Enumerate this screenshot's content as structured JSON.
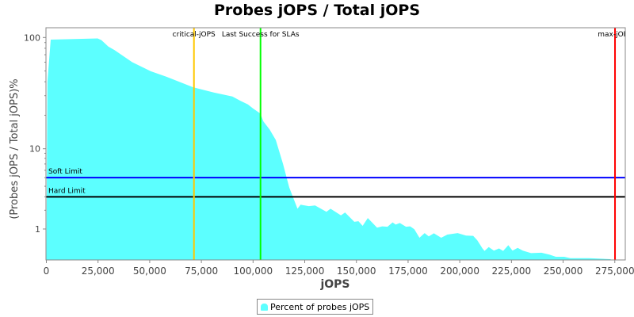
{
  "chart_data": {
    "type": "area",
    "title": "Probes jOPS / Total jOPS",
    "xlabel": "jOPS",
    "ylabel": "(Probes jOPS / Total jOPS)%",
    "xlim": [
      0,
      280000
    ],
    "ylim": [
      0,
      122
    ],
    "y_scale": "log",
    "x_ticks": [
      "0",
      "25,000",
      "50,000",
      "75,000",
      "100,000",
      "125,000",
      "150,000",
      "175,000",
      "200,000",
      "225,000",
      "250,000",
      "275,000"
    ],
    "x_tick_values": [
      0,
      25000,
      50000,
      75000,
      100000,
      125000,
      150000,
      175000,
      200000,
      225000,
      250000,
      275000
    ],
    "y_ticks": [
      "1",
      "10",
      "100"
    ],
    "y_tick_values": [
      1,
      10,
      100
    ],
    "grid": false,
    "legend_position": "bottom",
    "series": [
      {
        "name": "Percent of probes jOPS",
        "color": "#5cffff",
        "x": [
          0,
          500,
          2100,
          24800,
          26700,
          30000,
          33000,
          41500,
          50500,
          58000,
          71000,
          81000,
          90000,
          94000,
          97500,
          100000,
          103500,
          105000,
          108000,
          111000,
          114500,
          117500,
          121500,
          123000,
          127000,
          130000,
          135500,
          137500,
          142500,
          144500,
          149000,
          151000,
          153000,
          155500,
          160000,
          162500,
          165000,
          167500,
          169000,
          171000,
          174000,
          176000,
          178000,
          180500,
          183000,
          185000,
          187500,
          191000,
          194000,
          199000,
          203000,
          206500,
          208500,
          211000,
          212000,
          214000,
          216500,
          219000,
          221000,
          223500,
          225500,
          228000,
          230500,
          234500,
          239500,
          243500,
          246500,
          250500,
          253500,
          262500,
          273000
        ],
        "y": [
          0.02,
          40,
          95.7,
          98,
          94.6,
          83,
          77,
          60,
          49.7,
          44.5,
          35.7,
          32,
          29.5,
          26.9,
          25,
          23,
          20.7,
          17.6,
          14.9,
          12,
          7.03,
          3.87,
          2.1,
          2.38,
          2.28,
          2.33,
          1.9,
          2.1,
          1.69,
          1.86,
          1.34,
          1.37,
          1.14,
          1.54,
          1.06,
          1.12,
          1.1,
          1.31,
          1.2,
          1.28,
          1.1,
          1.12,
          0.99,
          0.65,
          0.83,
          0.7,
          0.82,
          0.65,
          0.77,
          0.83,
          0.73,
          0.72,
          0.56,
          0.3,
          0.23,
          0.34,
          0.24,
          0.3,
          0.23,
          0.4,
          0.24,
          0.32,
          0.24,
          0.17,
          0.18,
          0.13,
          0.077,
          0.077,
          0.045,
          0.045,
          0.02
        ]
      }
    ],
    "horizontal_markers": [
      {
        "label": "Soft Limit",
        "value": 5,
        "color": "#0000ff"
      },
      {
        "label": "Hard Limit",
        "value": 3,
        "color": "#000000"
      }
    ],
    "vertical_markers": [
      {
        "label": "critical-jOPS",
        "value": 71400,
        "color": "#ffc800"
      },
      {
        "label": "Last Success for SLAs",
        "value": 103600,
        "color": "#00ff00"
      },
      {
        "label": "max-jOPS",
        "value": 275100,
        "color": "#ff0000"
      }
    ]
  }
}
